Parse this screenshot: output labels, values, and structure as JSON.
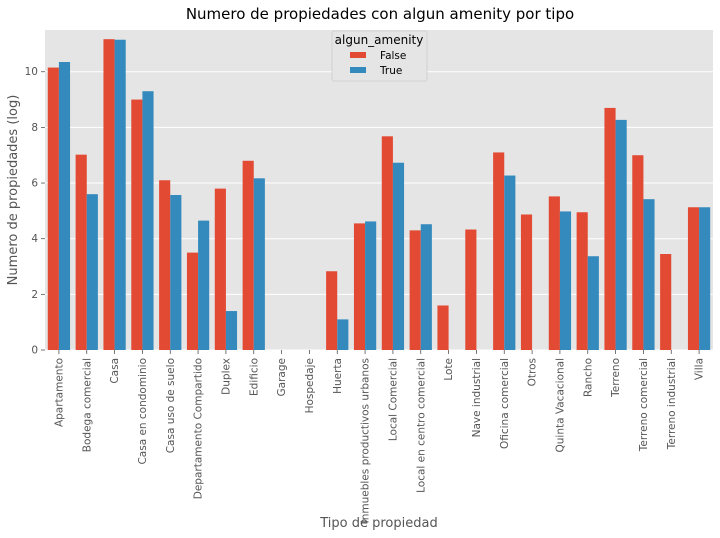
{
  "chart_data": {
    "type": "bar",
    "title": "Numero de propiedades con algun amenity por tipo",
    "xlabel": "Tipo de propiedad",
    "ylabel": "Numero de propiedades (log)",
    "ylim": [
      0,
      11.5
    ],
    "yticks": [
      0,
      2,
      4,
      6,
      8,
      10
    ],
    "grid": true,
    "legend": {
      "title": "algun_amenity",
      "position": "top-center"
    },
    "categories": [
      "Apartamento",
      "Bodega comercial",
      "Casa",
      "Casa en condominio",
      "Casa uso de suelo",
      "Departamento Compartido",
      "Duplex",
      "Edificio",
      "Garage",
      "Hospedaje",
      "Huerta",
      "Inmuebles productivos urbanos",
      "Local Comercial",
      "Local en centro comercial",
      "Lote",
      "Nave industrial",
      "Oficina comercial",
      "Otros",
      "Quinta Vacacional",
      "Rancho",
      "Terreno",
      "Terreno comercial",
      "Terreno industrial",
      "Villa"
    ],
    "series": [
      {
        "name": "False",
        "color": "#E24A33",
        "values": [
          10.15,
          7.02,
          11.17,
          9.0,
          6.1,
          3.5,
          5.8,
          6.8,
          0,
          0,
          2.83,
          4.55,
          7.68,
          4.3,
          1.6,
          4.33,
          7.1,
          4.87,
          5.52,
          4.95,
          8.7,
          7.0,
          3.45,
          5.13
        ]
      },
      {
        "name": "True",
        "color": "#348ABD",
        "values": [
          10.35,
          5.6,
          11.15,
          9.3,
          5.57,
          4.65,
          1.4,
          6.17,
          0,
          0,
          1.1,
          4.62,
          6.73,
          4.52,
          0,
          0,
          6.27,
          0,
          4.98,
          3.37,
          8.27,
          5.42,
          0,
          5.13
        ]
      }
    ]
  }
}
